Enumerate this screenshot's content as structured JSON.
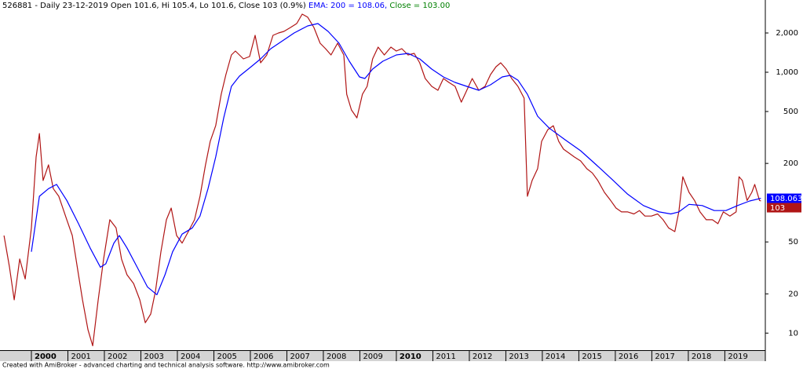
{
  "chart_data": {
    "type": "line",
    "header": "526881 - Daily 23-12-2019 Open 101.6, Hi 105.4, Lo 101.6, Close 103 (0.9%)",
    "annotations": [
      "EMA: 200 = 108.06,",
      "Close = 103.00"
    ],
    "footer": "Created with AmiBroker - advanced charting and technical analysis software. http://www.amibroker.com",
    "log_scale": true,
    "xlim": [
      1999.14,
      2020.11
    ],
    "xticks": [
      2000,
      2001,
      2002,
      2003,
      2004,
      2005,
      2006,
      2007,
      2008,
      2009,
      2010,
      2011,
      2012,
      2013,
      2014,
      2015,
      2016,
      2017,
      2018,
      2019
    ],
    "ylim": [
      7.4,
      3580
    ],
    "yticks": [
      10,
      20,
      50,
      200,
      500,
      {
        "value": 1000,
        "label": "1,000"
      },
      {
        "value": 2000,
        "label": "2,000"
      }
    ],
    "series": [
      {
        "color": "#b01515",
        "last_label": "103",
        "x": [
          1999.25,
          1999.4,
          1999.53,
          1999.68,
          1999.83,
          2000.0,
          2000.13,
          2000.22,
          2000.32,
          2000.47,
          2000.6,
          2000.75,
          2000.97,
          2001.12,
          2001.29,
          2001.4,
          2001.55,
          2001.68,
          2001.83,
          2001.98,
          2002.15,
          2002.32,
          2002.47,
          2002.62,
          2002.8,
          2002.97,
          2003.12,
          2003.27,
          2003.4,
          2003.55,
          2003.7,
          2003.83,
          2003.98,
          2004.13,
          2004.3,
          2004.47,
          2004.62,
          2004.77,
          2004.9,
          2005.05,
          2005.2,
          2005.33,
          2005.48,
          2005.59,
          2005.81,
          2005.98,
          2006.13,
          2006.28,
          2006.45,
          2006.62,
          2006.77,
          2006.92,
          2007.1,
          2007.27,
          2007.42,
          2007.57,
          2007.74,
          2007.91,
          2008.06,
          2008.21,
          2008.39,
          2008.56,
          2008.64,
          2008.77,
          2008.92,
          2009.07,
          2009.2,
          2009.35,
          2009.5,
          2009.67,
          2009.85,
          2010.0,
          2010.15,
          2010.32,
          2010.49,
          2010.64,
          2010.79,
          2010.97,
          2011.14,
          2011.29,
          2011.44,
          2011.61,
          2011.78,
          2011.93,
          2012.08,
          2012.26,
          2012.43,
          2012.58,
          2012.73,
          2012.86,
          2013.01,
          2013.16,
          2013.33,
          2013.5,
          2013.59,
          2013.72,
          2013.87,
          2013.98,
          2014.15,
          2014.3,
          2014.45,
          2014.58,
          2014.73,
          2014.88,
          2015.05,
          2015.22,
          2015.37,
          2015.52,
          2015.7,
          2015.87,
          2016.02,
          2016.17,
          2016.34,
          2016.51,
          2016.66,
          2016.81,
          2016.99,
          2017.16,
          2017.31,
          2017.46,
          2017.63,
          2017.74,
          2017.85,
          2018.02,
          2018.17,
          2018.32,
          2018.49,
          2018.66,
          2018.81,
          2018.96,
          2019.14,
          2019.31,
          2019.39,
          2019.48,
          2019.61,
          2019.74,
          2019.82,
          2019.95,
          2019.99
        ],
        "values": [
          56,
          32,
          18,
          37,
          26,
          64,
          224,
          339,
          148,
          195,
          128,
          112,
          74,
          56,
          28,
          18,
          10.6,
          8.0,
          18,
          37,
          74,
          64,
          37,
          28,
          24,
          18,
          12,
          14,
          21,
          42,
          74,
          91,
          56,
          49,
          60,
          74,
          112,
          195,
          295,
          389,
          678,
          959,
          1357,
          1455,
          1266,
          1320,
          1919,
          1181,
          1357,
          1919,
          2001,
          2057,
          2205,
          2363,
          2791,
          2641,
          2205,
          1671,
          1516,
          1357,
          1671,
          1357,
          678,
          514,
          447,
          678,
          779,
          1266,
          1559,
          1357,
          1559,
          1455,
          1516,
          1357,
          1395,
          1181,
          895,
          779,
          727,
          895,
          835,
          779,
          590,
          727,
          895,
          727,
          779,
          959,
          1102,
          1181,
          1057,
          895,
          779,
          633,
          112,
          148,
          182,
          295,
          363,
          389,
          295,
          257,
          240,
          224,
          209,
          182,
          169,
          148,
          120,
          104,
          91,
          85,
          85,
          82,
          87,
          79,
          79,
          82,
          74,
          64,
          60,
          85,
          158,
          120,
          104,
          85,
          74,
          74,
          69,
          85,
          79,
          85,
          158,
          148,
          104,
          120,
          138,
          104,
          103
        ]
      },
      {
        "color": "#0000ff",
        "last_label": "108.063",
        "x": [
          2000.0,
          2000.22,
          2000.47,
          2000.69,
          2000.97,
          2001.29,
          2001.61,
          2001.89,
          2002.04,
          2002.26,
          2002.41,
          2002.62,
          2002.9,
          2003.18,
          2003.44,
          2003.66,
          2003.87,
          2004.13,
          2004.41,
          2004.62,
          2004.84,
          2005.05,
          2005.27,
          2005.48,
          2005.7,
          2006.02,
          2006.28,
          2006.56,
          2006.88,
          2007.2,
          2007.57,
          2007.85,
          2008.13,
          2008.43,
          2008.71,
          2008.99,
          2009.14,
          2009.35,
          2009.63,
          2010.0,
          2010.32,
          2010.64,
          2010.97,
          2011.29,
          2011.61,
          2011.93,
          2012.26,
          2012.58,
          2012.9,
          2013.12,
          2013.33,
          2013.59,
          2013.87,
          2014.19,
          2014.62,
          2015.05,
          2015.48,
          2015.91,
          2016.34,
          2016.77,
          2017.2,
          2017.52,
          2017.74,
          2018.02,
          2018.38,
          2018.71,
          2019.03,
          2019.35,
          2019.68,
          2019.99
        ],
        "values": [
          42,
          112,
          128,
          138,
          104,
          69,
          45,
          32,
          34,
          49,
          56,
          45,
          32,
          22.6,
          19.7,
          28,
          42,
          57.4,
          64,
          79,
          128,
          224,
          447,
          779,
          933,
          1102,
          1266,
          1516,
          1742,
          2001,
          2266,
          2363,
          2057,
          1671,
          1214,
          920,
          895,
          1057,
          1214,
          1357,
          1395,
          1266,
          1057,
          920,
          835,
          779,
          727,
          801,
          920,
          946,
          870,
          678,
          460,
          373,
          304,
          250,
          195,
          151,
          116,
          95,
          85,
          82,
          85,
          97,
          95,
          87,
          87,
          95,
          103,
          108.063
        ]
      }
    ]
  }
}
